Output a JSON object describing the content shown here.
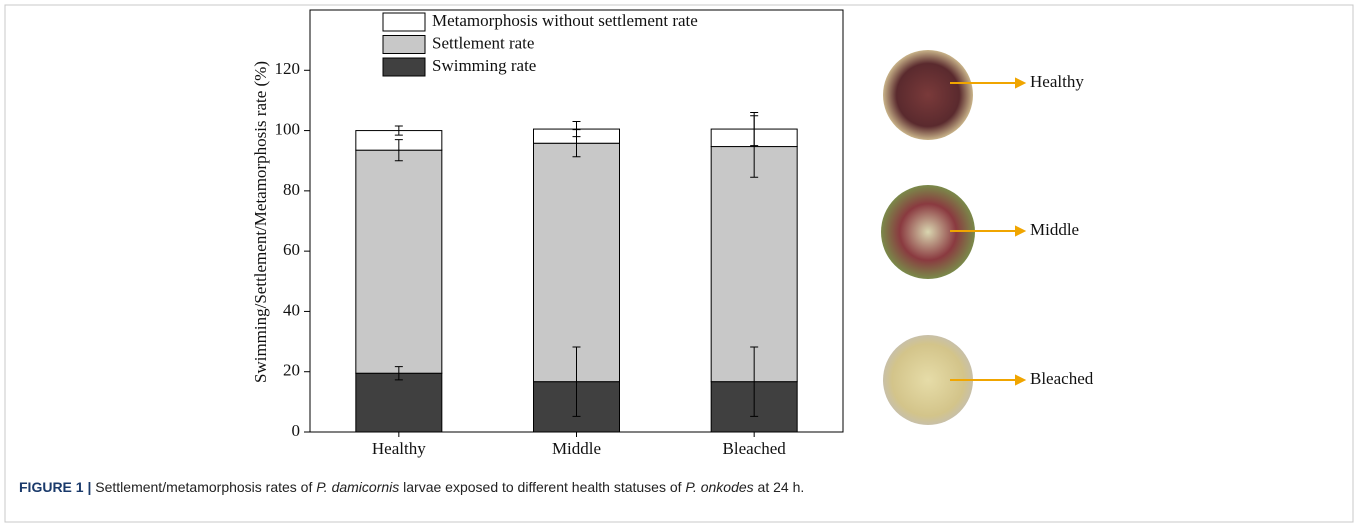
{
  "chart_data": {
    "type": "bar",
    "stacked": true,
    "ylabel": "Swimming/Settlement/Metamorphosis rate (%)",
    "categories": [
      "Healthy",
      "Middle",
      "Bleached"
    ],
    "series": [
      {
        "name": "Swimming rate",
        "color": "#404040",
        "values": [
          19.5,
          16.7,
          16.7
        ],
        "errors": [
          2.2,
          11.5,
          11.5
        ]
      },
      {
        "name": "Settlement rate",
        "color": "#c8c8c8",
        "values": [
          74,
          79.1,
          78
        ],
        "errors": [
          3.5,
          4.5,
          10.2
        ]
      },
      {
        "name": "Metamorphosis without settlement rate",
        "color": "#ffffff",
        "values": [
          6.5,
          4.7,
          5.8
        ],
        "errors": [
          1.5,
          2.5,
          5.5
        ]
      }
    ],
    "ylim": [
      0,
      140
    ],
    "yticks": [
      0,
      20,
      40,
      60,
      80,
      100,
      120
    ]
  },
  "images": [
    {
      "label": "Healthy"
    },
    {
      "label": "Middle"
    },
    {
      "label": "Bleached"
    }
  ],
  "caption": {
    "label": "FIGURE 1 |",
    "parts": [
      " Settlement/metamorphosis rates of ",
      "P. damicornis",
      " larvae exposed to different health statuses of ",
      "P. onkodes",
      " at 24 h."
    ]
  }
}
